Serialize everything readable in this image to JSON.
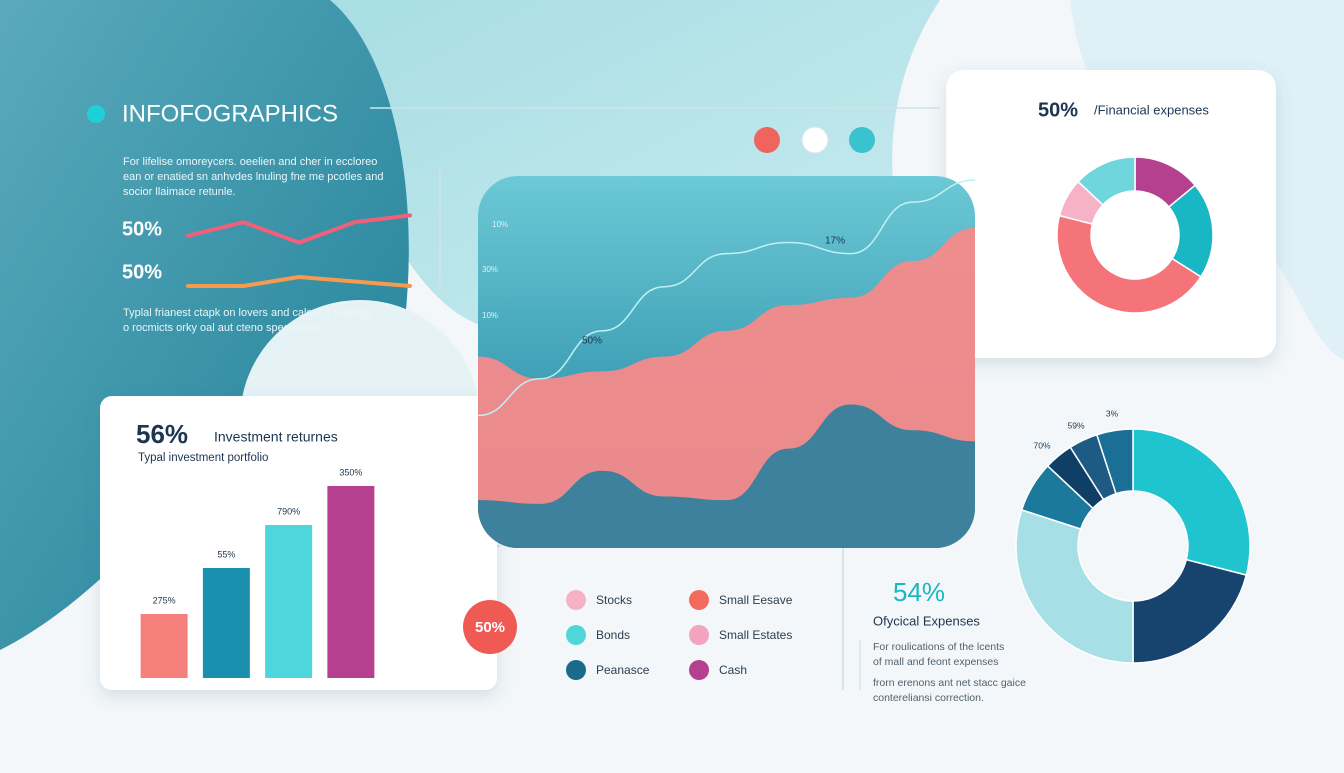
{
  "header": {
    "title": "INFOFOGRAPHICS",
    "intro": [
      "For lifelise omoreycers. oeelien and cher in eccloreo",
      "ean or enatied sn anhvdes lnuling fne me pcotles and",
      "socior llaimace retunle."
    ],
    "footer": [
      "Typlal frianest ctapk on lovers and calotir s ealiding",
      "o rocmicts orky oal aut cteno spegertioed."
    ]
  },
  "badge": "50%",
  "legend": {
    "items": [
      {
        "name": "Stocks",
        "color": "#f6b3c8"
      },
      {
        "name": "Bonds",
        "color": "#4fd6d8"
      },
      {
        "name": "Peanasce",
        "color": "#1a6a8a"
      },
      {
        "name": "Small Eesave",
        "color": "#f26b5e"
      },
      {
        "name": "Small Estates",
        "color": "#f2a3bd"
      },
      {
        "name": "Cash",
        "color": "#b5408f"
      }
    ]
  },
  "expenses": {
    "value": "54%",
    "title": "Ofycical Expenses",
    "text": [
      "For roulications of the lcents",
      "of mall and feont expenses",
      "frorn erenons ant net stacc gaice",
      "contereliansi correction."
    ]
  },
  "chart_data": [
    {
      "type": "line",
      "label": "50%",
      "color": "#f0607a",
      "values": [
        30,
        70,
        10,
        70,
        90
      ],
      "ylim": [
        0,
        100
      ]
    },
    {
      "type": "line",
      "label": "50%",
      "color": "#f59a4e",
      "values": [
        20,
        20,
        50,
        35,
        20
      ],
      "ylim": [
        0,
        100
      ]
    },
    {
      "type": "bar",
      "title": "56%",
      "subtitle": "Investment returnes",
      "description": "Typal investment portfolio",
      "values": [
        64,
        110,
        153,
        192
      ],
      "annotations": [
        "275%",
        "55%",
        "790%",
        "350%"
      ],
      "colors": [
        "#f57f7a",
        "#1b8fae",
        "#4fd6dc",
        "#b5408f"
      ],
      "ylim": [
        0,
        200
      ]
    },
    {
      "type": "area",
      "ylim": [
        0,
        100
      ],
      "annotations": [
        "10%",
        "30%",
        "10%",
        "17%",
        "50%"
      ],
      "series": [
        {
          "color": "#f58a8a",
          "values": [
            52,
            46,
            48,
            52,
            59,
            66,
            68,
            78,
            87
          ]
        },
        {
          "color": "#2a7f9e",
          "values": [
            13,
            12,
            21,
            14,
            13,
            27,
            39,
            32,
            29
          ]
        },
        {
          "color": "#bff0f2",
          "values": [
            36,
            46,
            59,
            71,
            80,
            83,
            80,
            94,
            100
          ]
        }
      ]
    },
    {
      "type": "pie",
      "title": "50%",
      "subtitle": "/Financial expenses",
      "values": [
        14,
        20,
        45,
        8,
        13
      ],
      "colors": [
        "#b5408f",
        "#19b7c4",
        "#f57479",
        "#f6b3c8",
        "#6ed6dc"
      ]
    },
    {
      "type": "pie",
      "annotations": [
        "70%",
        "59%",
        "3%"
      ],
      "values": [
        29,
        21,
        30,
        7,
        4,
        4,
        5
      ],
      "colors": [
        "#1fc4cf",
        "#17446e",
        "#a6e0e6",
        "#1b7a9c",
        "#0f3f66",
        "#1d5a84",
        "#1a6f97"
      ]
    }
  ]
}
